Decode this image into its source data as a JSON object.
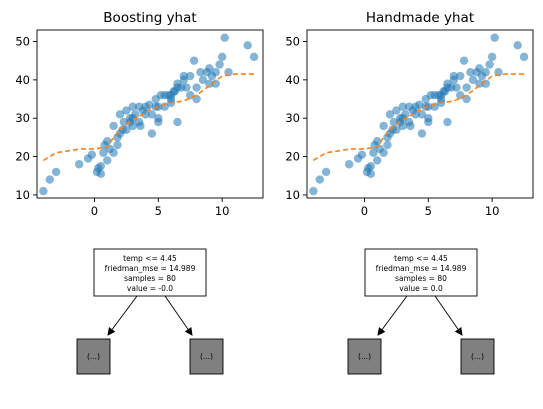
{
  "chart_data": [
    {
      "type": "scatter",
      "title": "Boosting yhat",
      "xlabel": "",
      "ylabel": "",
      "xlim": [
        -4.5,
        13.2
      ],
      "ylim": [
        9.2,
        53
      ],
      "x_ticks": [
        0,
        5,
        10
      ],
      "y_ticks": [
        10,
        20,
        30,
        40,
        50
      ],
      "grid": false,
      "points": {
        "color": "#1f77b4",
        "x": [
          -4.0,
          -3.5,
          -3.0,
          -1.2,
          -0.5,
          -0.2,
          0.3,
          0.5,
          0.7,
          1.0,
          1.2,
          1.5,
          1.8,
          2.0,
          2.0,
          2.3,
          2.5,
          2.8,
          3.0,
          3.0,
          3.2,
          3.5,
          3.8,
          4.0,
          4.3,
          4.5,
          4.8,
          5.0,
          5.0,
          5.2,
          5.5,
          5.8,
          6.0,
          6.0,
          6.2,
          6.5,
          6.8,
          7.0,
          7.5,
          7.8,
          8.0,
          8.5,
          8.8,
          9.0,
          9.2,
          9.5,
          9.8,
          10.0,
          10.2,
          12.0,
          12.5,
          0.5,
          0.2,
          1.0,
          1.5,
          2.5,
          3.5,
          4.5,
          5.5,
          6.5,
          7.5,
          8.3,
          9.0,
          10.5,
          2.8,
          4.0,
          5.0,
          6.0,
          6.5,
          7.0,
          8.0,
          9.5,
          3.0,
          1.8,
          2.2,
          0.8,
          4.8,
          6.3,
          7.2,
          3.6
        ],
        "y": [
          11,
          14,
          16,
          18,
          19.5,
          20.5,
          17,
          17.5,
          21,
          24,
          22,
          28,
          23,
          26,
          31,
          29,
          32,
          30,
          33,
          28,
          31,
          29,
          32,
          33,
          33.5,
          26,
          35,
          29,
          30,
          36,
          33,
          36,
          34,
          35,
          37,
          29,
          38,
          40,
          36,
          45,
          35,
          40,
          42,
          43,
          41,
          39,
          44,
          46,
          51,
          49,
          46,
          15.5,
          16,
          19,
          21,
          27,
          33,
          31,
          36,
          38,
          41,
          42,
          39,
          42,
          29,
          31,
          33,
          36,
          39,
          41,
          38,
          42,
          30,
          25,
          27,
          23,
          33,
          37,
          38,
          28
        ]
      },
      "curve": {
        "color": "#ff7f0e",
        "x": [
          -4,
          -3,
          -2,
          -1,
          0,
          1,
          1.5,
          2,
          2.5,
          3,
          3.5,
          4,
          4.5,
          5,
          5.5,
          6,
          7,
          8,
          9,
          10,
          11,
          12.5
        ],
        "y": [
          19,
          21,
          21.5,
          22,
          22,
          22.5,
          25,
          27,
          28.5,
          29.5,
          30.5,
          31.5,
          32.5,
          33,
          33.5,
          34,
          34.5,
          36,
          38.5,
          41,
          41.5,
          41.5
        ]
      }
    },
    {
      "type": "scatter",
      "title": "Handmade yhat",
      "xlabel": "",
      "ylabel": "",
      "xlim": [
        -4.5,
        13.2
      ],
      "ylim": [
        9.2,
        53
      ],
      "x_ticks": [
        0,
        5,
        10
      ],
      "y_ticks": [
        10,
        20,
        30,
        40,
        50
      ],
      "grid": false,
      "points": {
        "color": "#1f77b4",
        "x": [
          -4.0,
          -3.5,
          -3.0,
          -1.2,
          -0.5,
          -0.2,
          0.3,
          0.5,
          0.7,
          1.0,
          1.2,
          1.5,
          1.8,
          2.0,
          2.0,
          2.3,
          2.5,
          2.8,
          3.0,
          3.0,
          3.2,
          3.5,
          3.8,
          4.0,
          4.3,
          4.5,
          4.8,
          5.0,
          5.0,
          5.2,
          5.5,
          5.8,
          6.0,
          6.0,
          6.2,
          6.5,
          6.8,
          7.0,
          7.5,
          7.8,
          8.0,
          8.5,
          8.8,
          9.0,
          9.2,
          9.5,
          9.8,
          10.0,
          10.2,
          12.0,
          12.5,
          0.5,
          0.2,
          1.0,
          1.5,
          2.5,
          3.5,
          4.5,
          5.5,
          6.5,
          7.5,
          8.3,
          9.0,
          10.5,
          2.8,
          4.0,
          5.0,
          6.0,
          6.5,
          7.0,
          8.0,
          9.5,
          3.0,
          1.8,
          2.2,
          0.8,
          4.8,
          6.3,
          7.2,
          3.6
        ],
        "y": [
          11,
          14,
          16,
          18,
          19.5,
          20.5,
          17,
          17.5,
          21,
          24,
          22,
          28,
          23,
          26,
          31,
          29,
          32,
          30,
          33,
          28,
          31,
          29,
          32,
          33,
          33.5,
          26,
          35,
          29,
          30,
          36,
          33,
          36,
          34,
          35,
          37,
          29,
          38,
          40,
          36,
          45,
          35,
          40,
          42,
          43,
          41,
          39,
          44,
          46,
          51,
          49,
          46,
          15.5,
          16,
          19,
          21,
          27,
          33,
          31,
          36,
          38,
          41,
          42,
          39,
          42,
          29,
          31,
          33,
          36,
          39,
          41,
          38,
          42,
          30,
          25,
          27,
          23,
          33,
          37,
          38,
          28
        ]
      },
      "curve": {
        "color": "#ff7f0e",
        "x": [
          -4,
          -3,
          -2,
          -1,
          0,
          1,
          1.5,
          2,
          2.5,
          3,
          3.5,
          4,
          4.5,
          5,
          5.5,
          6,
          7,
          8,
          9,
          10,
          11,
          12.5
        ],
        "y": [
          19,
          21,
          21.5,
          22,
          22,
          22.5,
          25,
          27,
          28.5,
          29.5,
          30.5,
          31.5,
          32.5,
          33,
          33.5,
          34,
          34.5,
          36,
          38.5,
          41,
          41.5,
          41.5
        ]
      }
    }
  ],
  "trees": [
    {
      "root_lines": [
        "temp <= 4.45",
        "friedman_mse = 14.989",
        "samples = 80",
        "value = -0.0"
      ],
      "left_leaf": "(...)",
      "right_leaf": "(...)"
    },
    {
      "root_lines": [
        "temp <= 4.45",
        "friedman_mse = 14.989",
        "samples = 80",
        "value = 0.0"
      ],
      "left_leaf": "(...)",
      "right_leaf": "(...)"
    }
  ],
  "colors": {
    "leaf_fill": "#808080",
    "node_fill": "#ffffff"
  }
}
